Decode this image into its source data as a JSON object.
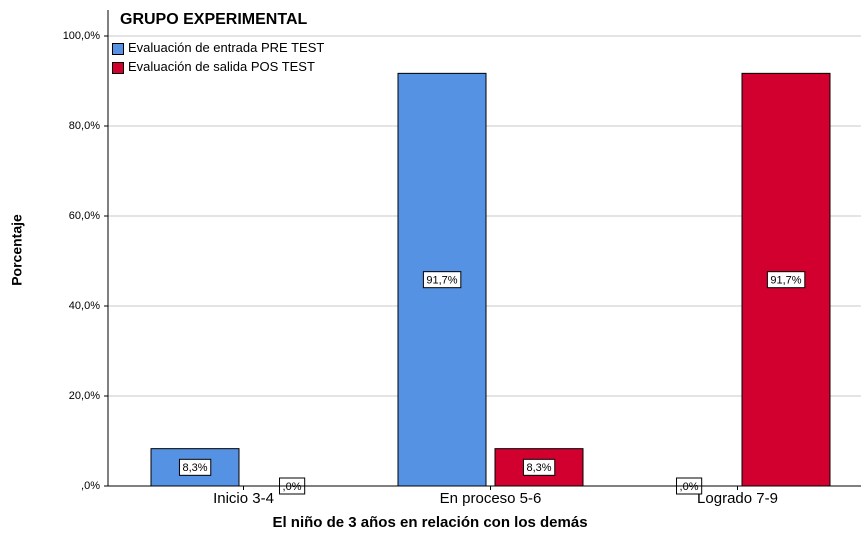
{
  "chart_data": {
    "type": "bar",
    "title": "GRUPO EXPERIMENTAL",
    "x_label": "El niño de 3 años en relación con los demás",
    "y_label": "Porcentaje",
    "categories": [
      "Inicio 3-4",
      "En proceso 5-6",
      "Logrado 7-9"
    ],
    "series": [
      {
        "name": "Evaluación de entrada PRE TEST",
        "color": "#5592e4",
        "values": [
          8.3,
          91.7,
          0
        ],
        "value_labels": [
          "8,3%",
          "91,7%",
          ",0%"
        ]
      },
      {
        "name": "Evaluación de salida POS TEST",
        "color": "#d2002e",
        "values": [
          0,
          8.3,
          91.7
        ],
        "value_labels": [
          ",0%",
          "8,3%",
          "91,7%"
        ]
      }
    ],
    "ylim": [
      0,
      100
    ],
    "yticks": [
      {
        "value": 0,
        "label": ",0%"
      },
      {
        "value": 20,
        "label": "20,0%"
      },
      {
        "value": 40,
        "label": "40,0%"
      },
      {
        "value": 60,
        "label": "60,0%"
      },
      {
        "value": 80,
        "label": "80,0%"
      },
      {
        "value": 100,
        "label": "100,0%"
      }
    ],
    "grid": true,
    "legend": "top-left"
  }
}
